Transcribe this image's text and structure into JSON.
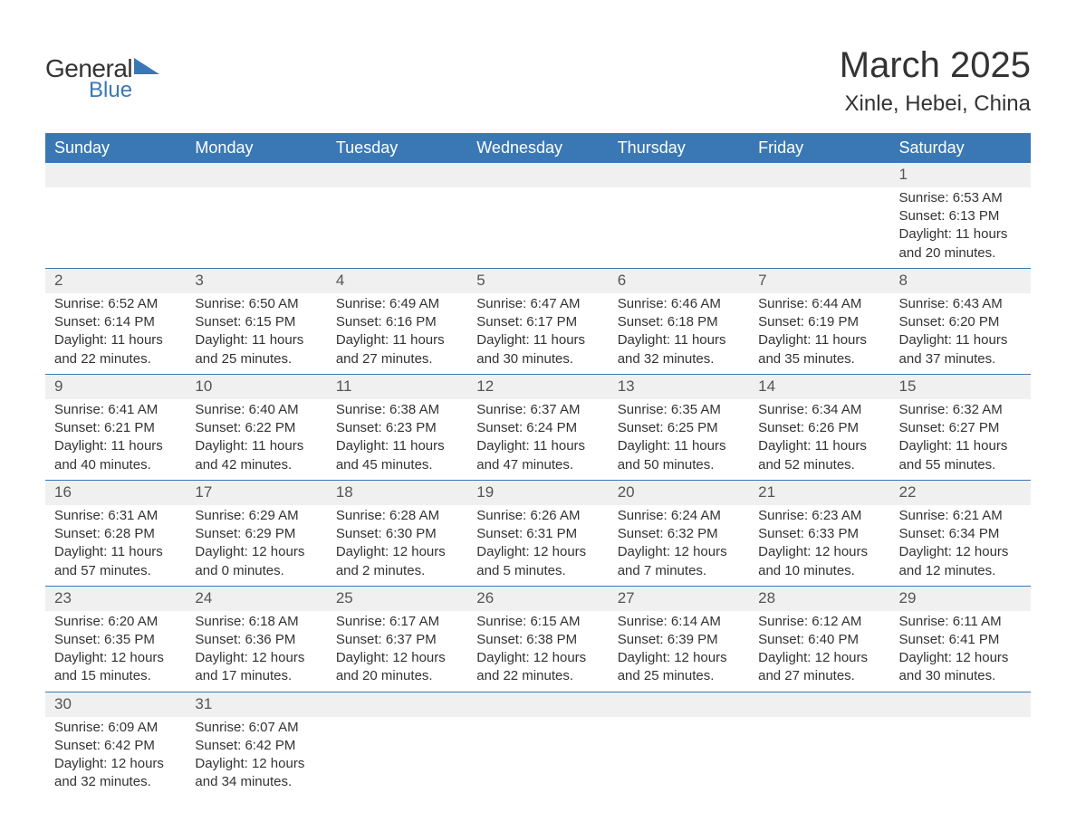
{
  "logo": {
    "text1": "General",
    "text2": "Blue",
    "accent_color": "#3a78b5"
  },
  "title": "March 2025",
  "location": "Xinle, Hebei, China",
  "colors": {
    "header_bg": "#3a78b5",
    "header_text": "#ffffff",
    "daynum_bg": "#f0f0f0",
    "row_border": "#3a78b5",
    "body_text": "#333333",
    "page_bg": "#ffffff"
  },
  "fonts": {
    "title_size": 40,
    "location_size": 24,
    "header_size": 18,
    "daynum_size": 17,
    "body_size": 15
  },
  "weekdays": [
    "Sunday",
    "Monday",
    "Tuesday",
    "Wednesday",
    "Thursday",
    "Friday",
    "Saturday"
  ],
  "labels": {
    "sunrise": "Sunrise:",
    "sunset": "Sunset:",
    "daylight": "Daylight:"
  },
  "weeks": [
    {
      "nums": [
        "",
        "",
        "",
        "",
        "",
        "",
        "1"
      ],
      "cells": [
        null,
        null,
        null,
        null,
        null,
        null,
        {
          "sunrise": "6:53 AM",
          "sunset": "6:13 PM",
          "daylight": "11 hours and 20 minutes."
        }
      ]
    },
    {
      "nums": [
        "2",
        "3",
        "4",
        "5",
        "6",
        "7",
        "8"
      ],
      "cells": [
        {
          "sunrise": "6:52 AM",
          "sunset": "6:14 PM",
          "daylight": "11 hours and 22 minutes."
        },
        {
          "sunrise": "6:50 AM",
          "sunset": "6:15 PM",
          "daylight": "11 hours and 25 minutes."
        },
        {
          "sunrise": "6:49 AM",
          "sunset": "6:16 PM",
          "daylight": "11 hours and 27 minutes."
        },
        {
          "sunrise": "6:47 AM",
          "sunset": "6:17 PM",
          "daylight": "11 hours and 30 minutes."
        },
        {
          "sunrise": "6:46 AM",
          "sunset": "6:18 PM",
          "daylight": "11 hours and 32 minutes."
        },
        {
          "sunrise": "6:44 AM",
          "sunset": "6:19 PM",
          "daylight": "11 hours and 35 minutes."
        },
        {
          "sunrise": "6:43 AM",
          "sunset": "6:20 PM",
          "daylight": "11 hours and 37 minutes."
        }
      ]
    },
    {
      "nums": [
        "9",
        "10",
        "11",
        "12",
        "13",
        "14",
        "15"
      ],
      "cells": [
        {
          "sunrise": "6:41 AM",
          "sunset": "6:21 PM",
          "daylight": "11 hours and 40 minutes."
        },
        {
          "sunrise": "6:40 AM",
          "sunset": "6:22 PM",
          "daylight": "11 hours and 42 minutes."
        },
        {
          "sunrise": "6:38 AM",
          "sunset": "6:23 PM",
          "daylight": "11 hours and 45 minutes."
        },
        {
          "sunrise": "6:37 AM",
          "sunset": "6:24 PM",
          "daylight": "11 hours and 47 minutes."
        },
        {
          "sunrise": "6:35 AM",
          "sunset": "6:25 PM",
          "daylight": "11 hours and 50 minutes."
        },
        {
          "sunrise": "6:34 AM",
          "sunset": "6:26 PM",
          "daylight": "11 hours and 52 minutes."
        },
        {
          "sunrise": "6:32 AM",
          "sunset": "6:27 PM",
          "daylight": "11 hours and 55 minutes."
        }
      ]
    },
    {
      "nums": [
        "16",
        "17",
        "18",
        "19",
        "20",
        "21",
        "22"
      ],
      "cells": [
        {
          "sunrise": "6:31 AM",
          "sunset": "6:28 PM",
          "daylight": "11 hours and 57 minutes."
        },
        {
          "sunrise": "6:29 AM",
          "sunset": "6:29 PM",
          "daylight": "12 hours and 0 minutes."
        },
        {
          "sunrise": "6:28 AM",
          "sunset": "6:30 PM",
          "daylight": "12 hours and 2 minutes."
        },
        {
          "sunrise": "6:26 AM",
          "sunset": "6:31 PM",
          "daylight": "12 hours and 5 minutes."
        },
        {
          "sunrise": "6:24 AM",
          "sunset": "6:32 PM",
          "daylight": "12 hours and 7 minutes."
        },
        {
          "sunrise": "6:23 AM",
          "sunset": "6:33 PM",
          "daylight": "12 hours and 10 minutes."
        },
        {
          "sunrise": "6:21 AM",
          "sunset": "6:34 PM",
          "daylight": "12 hours and 12 minutes."
        }
      ]
    },
    {
      "nums": [
        "23",
        "24",
        "25",
        "26",
        "27",
        "28",
        "29"
      ],
      "cells": [
        {
          "sunrise": "6:20 AM",
          "sunset": "6:35 PM",
          "daylight": "12 hours and 15 minutes."
        },
        {
          "sunrise": "6:18 AM",
          "sunset": "6:36 PM",
          "daylight": "12 hours and 17 minutes."
        },
        {
          "sunrise": "6:17 AM",
          "sunset": "6:37 PM",
          "daylight": "12 hours and 20 minutes."
        },
        {
          "sunrise": "6:15 AM",
          "sunset": "6:38 PM",
          "daylight": "12 hours and 22 minutes."
        },
        {
          "sunrise": "6:14 AM",
          "sunset": "6:39 PM",
          "daylight": "12 hours and 25 minutes."
        },
        {
          "sunrise": "6:12 AM",
          "sunset": "6:40 PM",
          "daylight": "12 hours and 27 minutes."
        },
        {
          "sunrise": "6:11 AM",
          "sunset": "6:41 PM",
          "daylight": "12 hours and 30 minutes."
        }
      ]
    },
    {
      "nums": [
        "30",
        "31",
        "",
        "",
        "",
        "",
        ""
      ],
      "cells": [
        {
          "sunrise": "6:09 AM",
          "sunset": "6:42 PM",
          "daylight": "12 hours and 32 minutes."
        },
        {
          "sunrise": "6:07 AM",
          "sunset": "6:42 PM",
          "daylight": "12 hours and 34 minutes."
        },
        null,
        null,
        null,
        null,
        null
      ]
    }
  ]
}
